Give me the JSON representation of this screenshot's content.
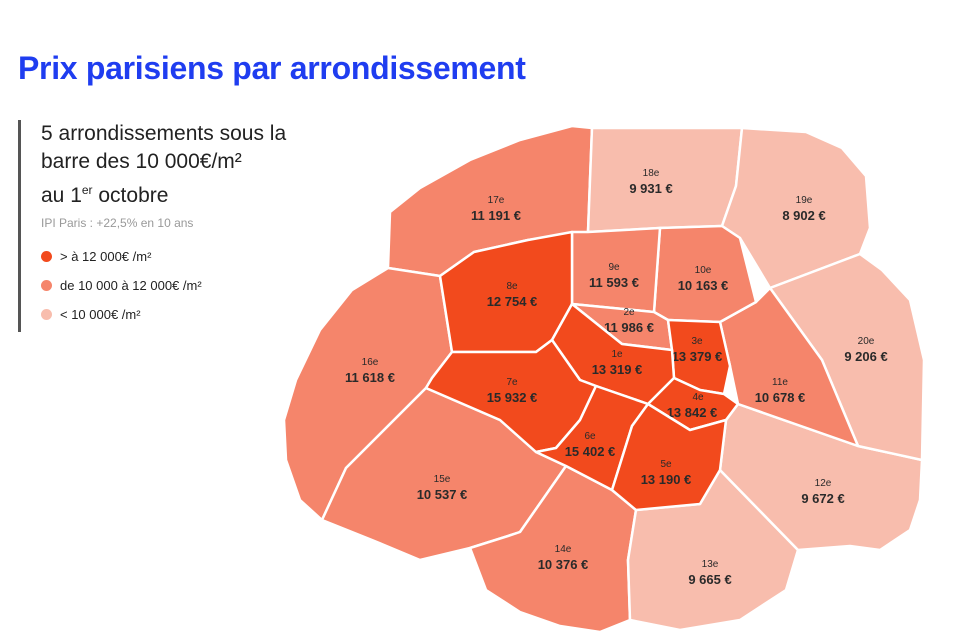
{
  "title": "Prix parisiens par arrondissement",
  "subtitle": {
    "line1": "5 arrondissements sous la",
    "line2": "barre des 10 000€/m²",
    "line3_prefix": "au 1",
    "line3_sup": "er",
    "line3_suffix": " octobre"
  },
  "note": "IPI Paris : +22,5% en 10 ans",
  "colors": {
    "high": "#f24a1d",
    "mid": "#f5856b",
    "low": "#f8bdad",
    "accent": "#1f3df0"
  },
  "legend": [
    {
      "label": "> à 12 000€ /m²",
      "level": "high"
    },
    {
      "label": "de 10 000 à 12 000€ /m²",
      "level": "mid"
    },
    {
      "label": "< 10 000€ /m²",
      "level": "low"
    }
  ],
  "arrondissements": [
    {
      "id": "1",
      "label": "1e",
      "price": "13 319 €",
      "level": "high"
    },
    {
      "id": "2",
      "label": "2e",
      "price": "11 986 €",
      "level": "mid"
    },
    {
      "id": "3",
      "label": "3e",
      "price": "13 379 €",
      "level": "high"
    },
    {
      "id": "4",
      "label": "4e",
      "price": "13 842 €",
      "level": "high"
    },
    {
      "id": "5",
      "label": "5e",
      "price": "13 190 €",
      "level": "high"
    },
    {
      "id": "6",
      "label": "6e",
      "price": "15 402 €",
      "level": "high"
    },
    {
      "id": "7",
      "label": "7e",
      "price": "15 932 €",
      "level": "high"
    },
    {
      "id": "8",
      "label": "8e",
      "price": "12 754 €",
      "level": "high"
    },
    {
      "id": "9",
      "label": "9e",
      "price": "11 593 €",
      "level": "mid"
    },
    {
      "id": "10",
      "label": "10e",
      "price": "10 163 €",
      "level": "mid"
    },
    {
      "id": "11",
      "label": "11e",
      "price": "10 678 €",
      "level": "mid"
    },
    {
      "id": "12",
      "label": "12e",
      "price": "9 672 €",
      "level": "low"
    },
    {
      "id": "13",
      "label": "13e",
      "price": "9 665 €",
      "level": "low"
    },
    {
      "id": "14",
      "label": "14e",
      "price": "10 376 €",
      "level": "mid"
    },
    {
      "id": "15",
      "label": "15e",
      "price": "10 537 €",
      "level": "mid"
    },
    {
      "id": "16",
      "label": "16e",
      "price": "11 618 €",
      "level": "mid"
    },
    {
      "id": "17",
      "label": "17e",
      "price": "11 191 €",
      "level": "mid"
    },
    {
      "id": "18",
      "label": "18e",
      "price": "9 931 €",
      "level": "low"
    },
    {
      "id": "19",
      "label": "19e",
      "price": "8 902 €",
      "level": "low"
    },
    {
      "id": "20",
      "label": "20e",
      "price": "9 206 €",
      "level": "low"
    }
  ]
}
